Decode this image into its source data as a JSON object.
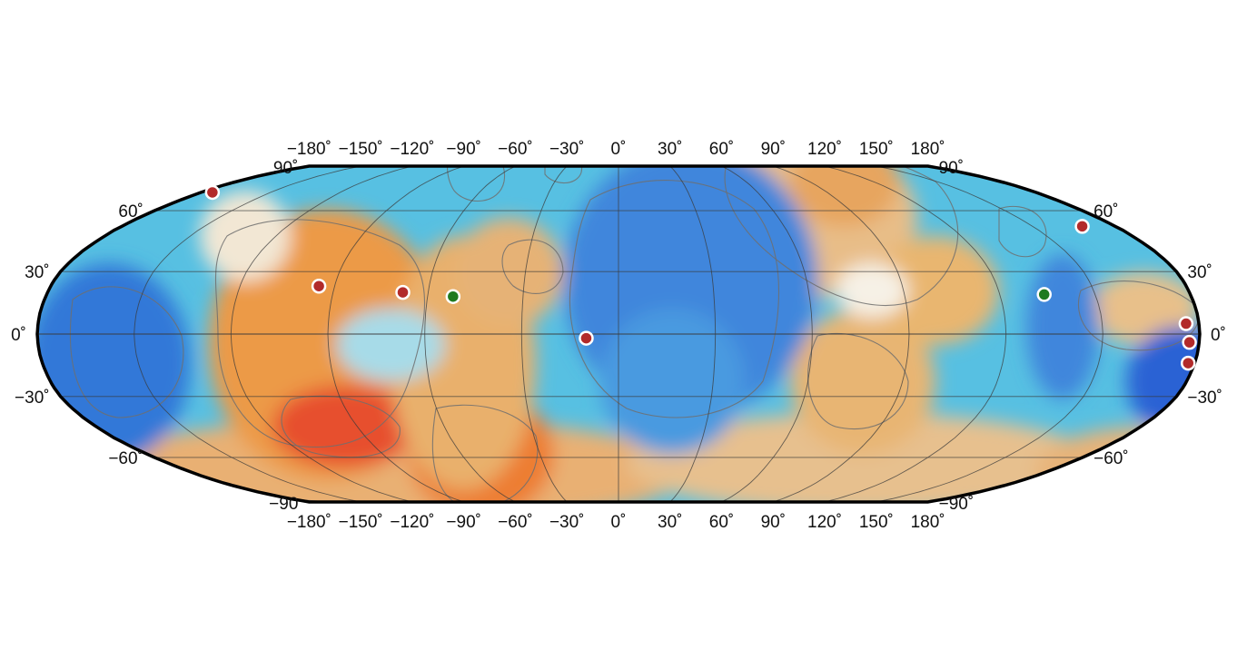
{
  "map": {
    "projection": "robinson",
    "top_lon_labels": [
      "−180˚",
      "−150˚",
      "−120˚",
      "−90˚",
      "−60˚",
      "−30˚",
      "0˚",
      "30˚",
      "60˚",
      "90˚",
      "120˚",
      "150˚",
      "180˚"
    ],
    "bottom_lon_labels": [
      "−180˚",
      "−150˚",
      "−120˚",
      "−90˚",
      "−60˚",
      "−30˚",
      "0˚",
      "30˚",
      "60˚",
      "90˚",
      "120˚",
      "150˚",
      "180˚"
    ],
    "left_lat_labels": [
      "90˚",
      "60˚",
      "30˚",
      "0˚",
      "−30˚",
      "−60˚",
      "−90"
    ],
    "right_lat_labels": [
      "90˚",
      "60˚",
      "30˚",
      "0˚",
      "−30˚",
      "−60˚",
      "−90˚"
    ],
    "colors": {
      "deep_blue": "#1030c8",
      "mid_blue": "#3f8ae0",
      "cyan": "#59cfe6",
      "light": "#f2ede0",
      "tan": "#e3b070",
      "orange": "#ee8f30",
      "red": "#e63f2f",
      "marker_red": "#b22a2a",
      "marker_green": "#1f7a1f"
    },
    "markers": [
      {
        "color": "red",
        "lon": -175,
        "lat": 70
      },
      {
        "color": "red",
        "lon": -95,
        "lat": 23
      },
      {
        "color": "red",
        "lon": -68,
        "lat": 20
      },
      {
        "color": "green",
        "lon": -52,
        "lat": 18
      },
      {
        "color": "red",
        "lon": -10,
        "lat": -2
      },
      {
        "color": "green",
        "lon": 134,
        "lat": 19
      },
      {
        "color": "red",
        "lon": 168,
        "lat": 52
      },
      {
        "color": "red",
        "lon": 176,
        "lat": 5
      },
      {
        "color": "red",
        "lon": 177,
        "lat": -4
      },
      {
        "color": "red",
        "lon": 178,
        "lat": -14
      }
    ]
  }
}
